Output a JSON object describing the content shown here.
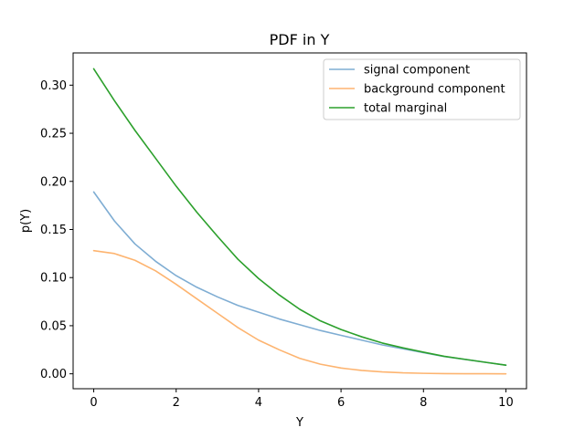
{
  "chart_data": {
    "type": "line",
    "title": "PDF in Y",
    "xlabel": "Y",
    "ylabel": "p(Y)",
    "xlim": [
      -0.5,
      10.5
    ],
    "ylim": [
      -0.0155,
      0.3335
    ],
    "xticks": [
      0,
      2,
      4,
      6,
      8,
      10
    ],
    "xtick_labels": [
      "0",
      "2",
      "4",
      "6",
      "8",
      "10"
    ],
    "yticks": [
      0.0,
      0.05,
      0.1,
      0.15,
      0.2,
      0.25,
      0.3
    ],
    "ytick_labels": [
      "0.00",
      "0.05",
      "0.10",
      "0.15",
      "0.20",
      "0.25",
      "0.30"
    ],
    "grid": false,
    "legend_position": "top-right",
    "x": [
      0,
      0.5,
      1,
      1.5,
      2,
      2.5,
      3,
      3.5,
      4,
      4.5,
      5,
      5.5,
      6,
      6.5,
      7,
      7.5,
      8,
      8.5,
      9,
      9.5,
      10
    ],
    "series": [
      {
        "name": "signal component",
        "color": "#7fadd3",
        "values": [
          0.189,
          0.159,
          0.135,
          0.117,
          0.102,
          0.09,
          0.08,
          0.071,
          0.064,
          0.057,
          0.051,
          0.045,
          0.04,
          0.035,
          0.03,
          0.026,
          0.022,
          0.018,
          0.015,
          0.012,
          0.009
        ]
      },
      {
        "name": "background component",
        "color": "#fdb470",
        "values": [
          0.128,
          0.125,
          0.118,
          0.107,
          0.093,
          0.078,
          0.063,
          0.048,
          0.035,
          0.025,
          0.016,
          0.01,
          0.006,
          0.0035,
          0.002,
          0.001,
          0.0005,
          0.0002,
          0.0001,
          5e-05,
          0.0
        ]
      },
      {
        "name": "total marginal",
        "color": "#2ca02c",
        "values": [
          0.317,
          0.284,
          0.253,
          0.224,
          0.195,
          0.168,
          0.143,
          0.119,
          0.099,
          0.082,
          0.067,
          0.055,
          0.046,
          0.0385,
          0.032,
          0.027,
          0.0225,
          0.0182,
          0.0151,
          0.012,
          0.009
        ]
      }
    ]
  }
}
